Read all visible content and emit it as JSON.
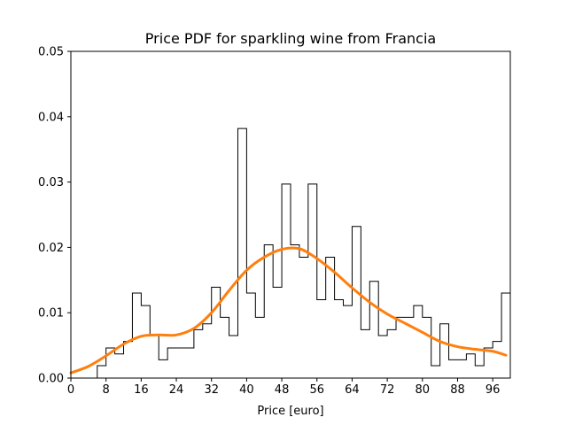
{
  "chart_data": {
    "type": "histogram",
    "title": "Price PDF for sparkling wine from Francia",
    "xlabel": "Price [euro]",
    "ylabel": "",
    "xlim": [
      0,
      100
    ],
    "ylim": [
      0,
      0.05
    ],
    "xticks": [
      0,
      8,
      16,
      24,
      32,
      40,
      48,
      56,
      64,
      72,
      80,
      88,
      96
    ],
    "yticks": [
      0.0,
      0.01,
      0.02,
      0.03,
      0.04,
      0.05
    ],
    "ytick_labels": [
      "0.00",
      "0.01",
      "0.02",
      "0.03",
      "0.04",
      "0.05"
    ],
    "grid": false,
    "legend": "none",
    "colors": {
      "histogram": "#000000",
      "density": "#ff7f0e"
    },
    "series": [
      {
        "kind": "histogram-step",
        "bin_edges": [
          0,
          2,
          4,
          6,
          8,
          10,
          12,
          14,
          16,
          18,
          20,
          22,
          24,
          26,
          28,
          30,
          32,
          34,
          36,
          38,
          40,
          42,
          44,
          46,
          48,
          50,
          52,
          54,
          56,
          58,
          60,
          62,
          64,
          66,
          68,
          70,
          72,
          74,
          76,
          78,
          80,
          82,
          84,
          86,
          88,
          90,
          92,
          94,
          96,
          98,
          100
        ],
        "density": [
          0,
          0,
          0,
          0.0019,
          0.0046,
          0.0037,
          0.0056,
          0.013,
          0.0111,
          0.0065,
          0.0028,
          0.0046,
          0.0046,
          0.0046,
          0.0074,
          0.0083,
          0.0139,
          0.0093,
          0.0065,
          0.0382,
          0.013,
          0.0093,
          0.0204,
          0.0139,
          0.0297,
          0.0204,
          0.0185,
          0.0297,
          0.012,
          0.0185,
          0.012,
          0.0111,
          0.0232,
          0.0074,
          0.0148,
          0.0065,
          0.0074,
          0.0093,
          0.0093,
          0.0111,
          0.0093,
          0.0019,
          0.0083,
          0.0028,
          0.0028,
          0.0037,
          0.0019,
          0.0046,
          0.0056,
          0.013
        ]
      },
      {
        "kind": "density-curve",
        "x": [
          0,
          4,
          8,
          12,
          16,
          20,
          24,
          28,
          32,
          36,
          40,
          44,
          48,
          52,
          56,
          60,
          64,
          68,
          72,
          76,
          80,
          84,
          88,
          92,
          96,
          99
        ],
        "y": [
          0.0008,
          0.0018,
          0.0034,
          0.0052,
          0.0064,
          0.0066,
          0.0066,
          0.0076,
          0.01,
          0.0134,
          0.0165,
          0.0185,
          0.0197,
          0.0198,
          0.0183,
          0.0162,
          0.0138,
          0.0116,
          0.0098,
          0.0084,
          0.007,
          0.0056,
          0.0048,
          0.0044,
          0.0041,
          0.0035
        ]
      }
    ]
  }
}
